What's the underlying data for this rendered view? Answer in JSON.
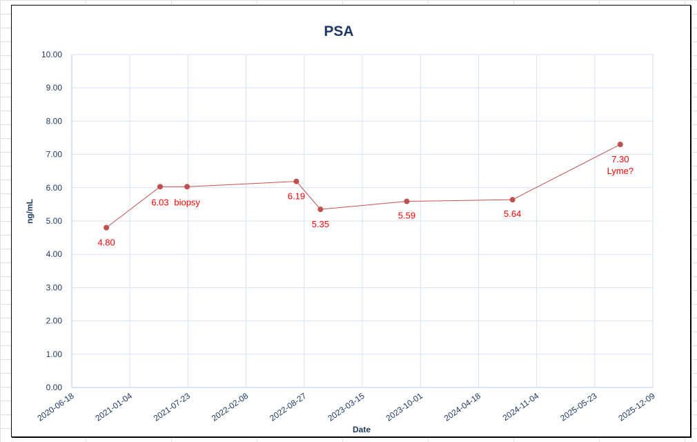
{
  "chart_data": {
    "type": "line",
    "title": "PSA",
    "xlabel": "Date",
    "ylabel": "ng/mL",
    "ylim": [
      0,
      10
    ],
    "yticks": [
      "0.00",
      "1.00",
      "2.00",
      "3.00",
      "4.00",
      "5.00",
      "6.00",
      "7.00",
      "8.00",
      "9.00",
      "10.00"
    ],
    "xlim": [
      "2020-06-18",
      "2025-12-09"
    ],
    "xticks": [
      "2020-06-18",
      "2021-01-04",
      "2021-07-23",
      "2022-02-08",
      "2022-08-27",
      "2023-03-15",
      "2023-10-01",
      "2024-04-18",
      "2024-11-04",
      "2025-05-23",
      "2025-12-09"
    ],
    "grid": true,
    "series": [
      {
        "name": "PSA",
        "color": "#c0504d",
        "points": [
          {
            "x": "2020-10-15",
            "y": 4.8,
            "label": "4.80"
          },
          {
            "x": "2021-04-18",
            "y": 6.03,
            "label": "6.03"
          },
          {
            "x": "2021-07-20",
            "y": 6.03,
            "label": "biopsy"
          },
          {
            "x": "2022-07-31",
            "y": 6.19,
            "label": "6.19"
          },
          {
            "x": "2022-10-22",
            "y": 5.35,
            "label": "5.35"
          },
          {
            "x": "2023-08-15",
            "y": 5.59,
            "label": "5.59"
          },
          {
            "x": "2024-08-13",
            "y": 5.64,
            "label": "5.64"
          },
          {
            "x": "2025-08-19",
            "y": 7.3,
            "label": "7.30",
            "label2": "Lyme?"
          }
        ]
      }
    ],
    "label_color": "#ff0000",
    "axis_text_color": "#1f3864"
  }
}
